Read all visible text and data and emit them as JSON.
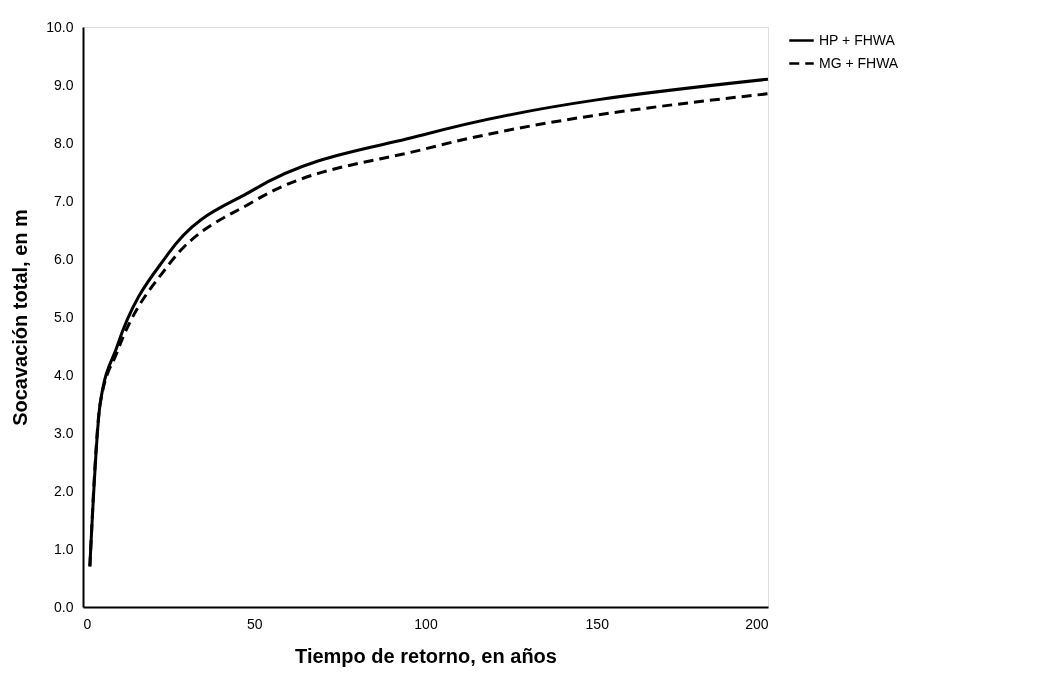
{
  "chart_data": {
    "type": "line",
    "xlabel": "Tiempo de retorno, en años",
    "ylabel": "Socavación total, en m",
    "x": [
      2,
      5,
      10,
      25,
      50,
      100,
      200
    ],
    "series": [
      {
        "name": "HP + FHWA",
        "color": "#000000",
        "line_style": "solid",
        "values": [
          0.7,
          3.5,
          4.5,
          6.1,
          7.2,
          8.15,
          9.1
        ]
      },
      {
        "name": "MG + FHWA",
        "color": "#000000",
        "line_style": "dashed",
        "values": [
          0.7,
          3.5,
          4.4,
          5.9,
          7.0,
          7.9,
          8.85
        ]
      }
    ],
    "xlim": [
      0,
      200
    ],
    "xticks": [
      0,
      50,
      100,
      150,
      200
    ],
    "ylim": [
      0,
      10
    ],
    "yticks": [
      {
        "value": 0,
        "label": "0.0"
      },
      {
        "value": 1,
        "label": "1.0"
      },
      {
        "value": 2,
        "label": "2.0"
      },
      {
        "value": 3,
        "label": "3.0"
      },
      {
        "value": 4,
        "label": "4.0"
      },
      {
        "value": 5,
        "label": "5.0"
      },
      {
        "value": 6,
        "label": "6.0"
      },
      {
        "value": 7,
        "label": "7.0"
      },
      {
        "value": 8,
        "label": "8.0"
      },
      {
        "value": 9,
        "label": "9.0"
      },
      {
        "value": 10,
        "label": "10.0"
      }
    ],
    "grid": false,
    "legend": "right",
    "marker": "none"
  }
}
